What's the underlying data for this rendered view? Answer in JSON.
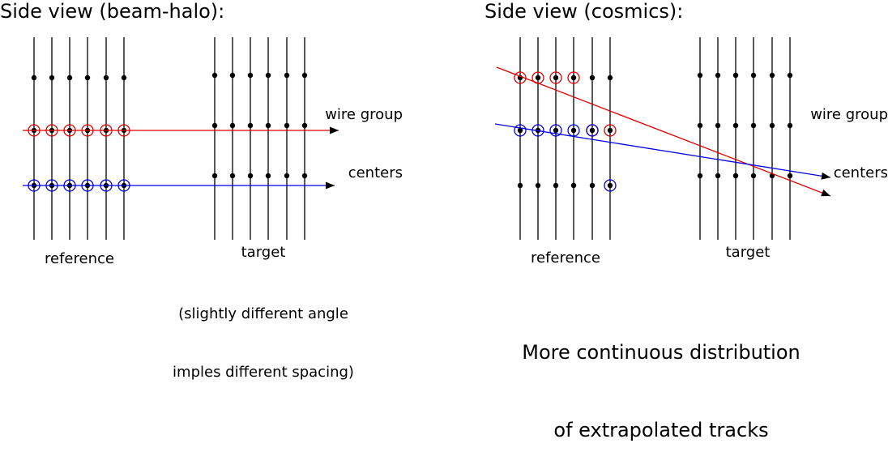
{
  "left_panel": {
    "title": "Side view (beam-halo):",
    "wire_label_line1": "wire group",
    "wire_label_line2": "centers",
    "reference_label": "reference",
    "target_label": "target",
    "note_line1": "(slightly different angle",
    "note_line2": "imples different spacing)"
  },
  "right_panel": {
    "title": "Side view (cosmics):",
    "wire_label_line1": "wire group",
    "wire_label_line2": "centers",
    "reference_label": "reference",
    "target_label": "target",
    "summary_line1": "More continuous distribution",
    "summary_line2": "of extrapolated tracks"
  },
  "colors": {
    "wire": "#000000",
    "track_red": "#e00000",
    "track_blue": "#0000e0"
  }
}
